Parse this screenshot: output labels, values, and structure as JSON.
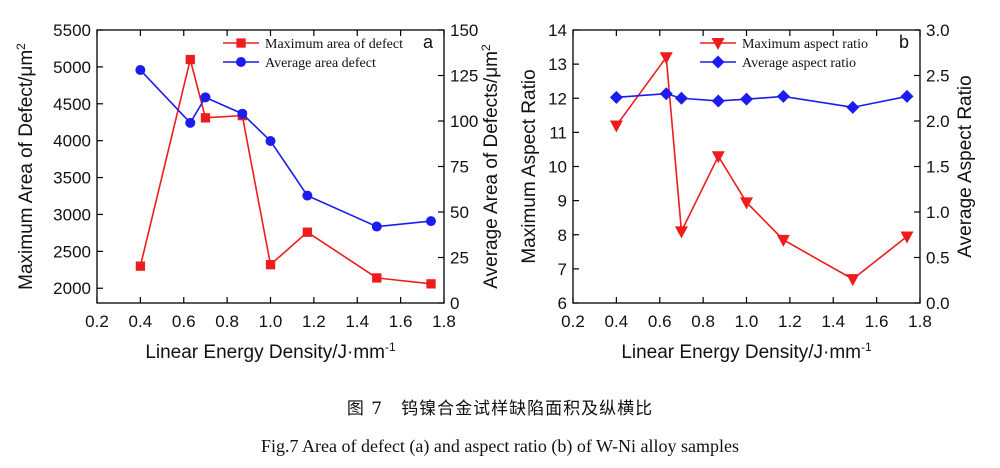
{
  "caption_cn": "图 7　钨镍合金试样缺陷面积及纵横比",
  "caption_en": "Fig.7    Area of defect (a) and aspect ratio (b) of W-Ni alloy samples",
  "colors": {
    "red": "#ee1c1c",
    "blue": "#1c1cee"
  },
  "chart_data": [
    {
      "type": "line",
      "panel_label": "a",
      "xlabel": "Linear Energy Density/J·mm",
      "xlabel_sup": "-1",
      "ylabel": "Maximum Area of Defect/μm",
      "ylabel_sup": "2",
      "y2label": "Average Area of Defects/μm",
      "y2label_sup": "2",
      "xlim": [
        0.2,
        1.8
      ],
      "ylim": [
        1800,
        5500
      ],
      "y2lim": [
        0,
        150
      ],
      "xticks": [
        "0.2",
        "0.4",
        "0.6",
        "0.8",
        "1.0",
        "1.2",
        "1.4",
        "1.6",
        "1.8"
      ],
      "yticks": [
        "2000",
        "2500",
        "3000",
        "3500",
        "4000",
        "4500",
        "5000",
        "5500"
      ],
      "y2ticks": [
        "0",
        "25",
        "50",
        "75",
        "100",
        "125",
        "150"
      ],
      "legend_position": "top-right",
      "series": [
        {
          "name": "Maximum area of defect",
          "axis": "left",
          "marker": "square",
          "color": "#ee1c1c",
          "x": [
            0.4,
            0.63,
            0.7,
            0.87,
            1.0,
            1.17,
            1.49,
            1.74
          ],
          "y": [
            2300,
            5100,
            4310,
            4340,
            2320,
            2760,
            2140,
            2060
          ]
        },
        {
          "name": "Average area defect",
          "axis": "right",
          "marker": "circle",
          "color": "#1c1cee",
          "x": [
            0.4,
            0.63,
            0.7,
            0.87,
            1.0,
            1.17,
            1.49,
            1.74
          ],
          "y": [
            128,
            99,
            113,
            104,
            89,
            59,
            42,
            45
          ]
        }
      ]
    },
    {
      "type": "line",
      "panel_label": "b",
      "xlabel": "Linear Energy Density/J·mm",
      "xlabel_sup": "-1",
      "ylabel": "Maximum Aspect Ratio",
      "y2label": "Average Aspect Ratio",
      "xlim": [
        0.2,
        1.8
      ],
      "ylim": [
        6,
        14
      ],
      "y2lim": [
        0.0,
        3.0
      ],
      "xticks": [
        "0.2",
        "0.4",
        "0.6",
        "0.8",
        "1.0",
        "1.2",
        "1.4",
        "1.6",
        "1.8"
      ],
      "yticks": [
        "6",
        "7",
        "8",
        "9",
        "10",
        "11",
        "12",
        "13",
        "14"
      ],
      "y2ticks": [
        "0.0",
        "0.5",
        "1.0",
        "1.5",
        "2.0",
        "2.5",
        "3.0"
      ],
      "legend_position": "top-right",
      "series": [
        {
          "name": "Maximum aspect ratio",
          "axis": "left",
          "marker": "triangle-down",
          "color": "#ee1c1c",
          "x": [
            0.4,
            0.63,
            0.7,
            0.87,
            1.0,
            1.17,
            1.49,
            1.74
          ],
          "y": [
            11.2,
            13.2,
            8.1,
            10.3,
            8.95,
            7.85,
            6.7,
            7.95
          ]
        },
        {
          "name": "Average aspect ratio",
          "axis": "right",
          "marker": "diamond",
          "color": "#1c1cee",
          "x": [
            0.4,
            0.63,
            0.7,
            0.87,
            1.0,
            1.17,
            1.49,
            1.74
          ],
          "y": [
            2.26,
            2.3,
            2.25,
            2.22,
            2.24,
            2.27,
            2.15,
            2.27
          ]
        }
      ]
    }
  ]
}
